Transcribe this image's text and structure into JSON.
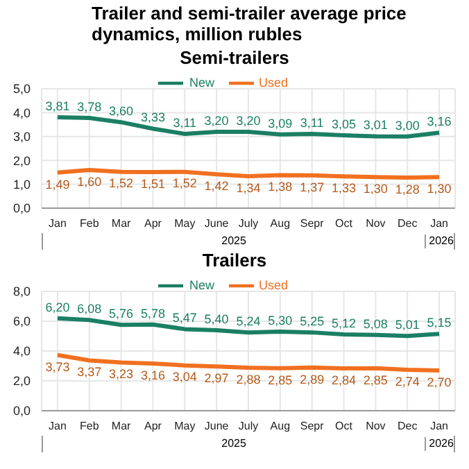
{
  "chart_data": [
    {
      "type": "line",
      "title": "Trailer and semi-trailer average price dynamics, million rubles",
      "subtitle": "Semi-trailers",
      "categories": [
        "Jan",
        "Feb",
        "Mar",
        "Apr",
        "May",
        "June",
        "July",
        "Aug",
        "Sepr",
        "Oct",
        "Nov",
        "Dec",
        "Jan"
      ],
      "series": [
        {
          "name": "New",
          "color": "#1a7f64",
          "values": [
            3.81,
            3.78,
            3.6,
            3.33,
            3.11,
            3.2,
            3.2,
            3.09,
            3.11,
            3.05,
            3.01,
            3.0,
            3.16
          ],
          "value_labels": [
            "3,81",
            "3,78",
            "3,60",
            "3,33",
            "3,11",
            "3,20",
            "3,20",
            "3,09",
            "3,11",
            "3,05",
            "3,01",
            "3,00",
            "3,16"
          ]
        },
        {
          "name": "Used",
          "color": "#f07020",
          "values": [
            1.49,
            1.6,
            1.52,
            1.51,
            1.52,
            1.42,
            1.34,
            1.38,
            1.37,
            1.33,
            1.3,
            1.28,
            1.3
          ],
          "value_labels": [
            "1,49",
            "1,60",
            "1,52",
            "1,51",
            "1,52",
            "1,42",
            "1,34",
            "1,38",
            "1,37",
            "1,33",
            "1,30",
            "1,28",
            "1,30"
          ]
        }
      ],
      "ylim": [
        0,
        5
      ],
      "yticks": [
        {
          "value": 0,
          "label": "0,0"
        },
        {
          "value": 1,
          "label": "1,0"
        },
        {
          "value": 2,
          "label": "2,0"
        },
        {
          "value": 3,
          "label": "3,0"
        },
        {
          "value": 4,
          "label": "4,0"
        },
        {
          "value": 5,
          "label": "5,0"
        }
      ],
      "annotations": [
        "2025",
        "2026"
      ],
      "grid": true,
      "legend": "top",
      "marker": "none"
    },
    {
      "type": "line",
      "title": "Trailers",
      "categories": [
        "Jan",
        "Feb",
        "Mar",
        "Apr",
        "May",
        "June",
        "July",
        "Aug",
        "Sepr",
        "Oct",
        "Nov",
        "Dec",
        "Jan"
      ],
      "series": [
        {
          "name": "New",
          "color": "#1a7f64",
          "values": [
            6.2,
            6.08,
            5.76,
            5.78,
            5.47,
            5.4,
            5.24,
            5.3,
            5.25,
            5.12,
            5.08,
            5.01,
            5.15
          ],
          "value_labels": [
            "6,20",
            "6,08",
            "5,76",
            "5,78",
            "5,47",
            "5,40",
            "5,24",
            "5,30",
            "5,25",
            "5,12",
            "5,08",
            "5,01",
            "5,15"
          ]
        },
        {
          "name": "Used",
          "color": "#f07020",
          "values": [
            3.73,
            3.37,
            3.23,
            3.16,
            3.04,
            2.97,
            2.88,
            2.85,
            2.89,
            2.84,
            2.85,
            2.74,
            2.7
          ],
          "value_labels": [
            "3,73",
            "3,37",
            "3,23",
            "3,16",
            "3,04",
            "2,97",
            "2,88",
            "2,85",
            "2,89",
            "2,84",
            "2,85",
            "2,74",
            "2,70"
          ]
        }
      ],
      "ylim": [
        0,
        8
      ],
      "yticks": [
        {
          "value": 0,
          "label": "0,0"
        },
        {
          "value": 2,
          "label": "2,0"
        },
        {
          "value": 4,
          "label": "4,0"
        },
        {
          "value": 6,
          "label": "6,0"
        },
        {
          "value": 8,
          "label": "8,0"
        }
      ],
      "annotations": [
        "2025",
        "2026"
      ],
      "grid": true,
      "legend": "top",
      "marker": "none"
    }
  ]
}
